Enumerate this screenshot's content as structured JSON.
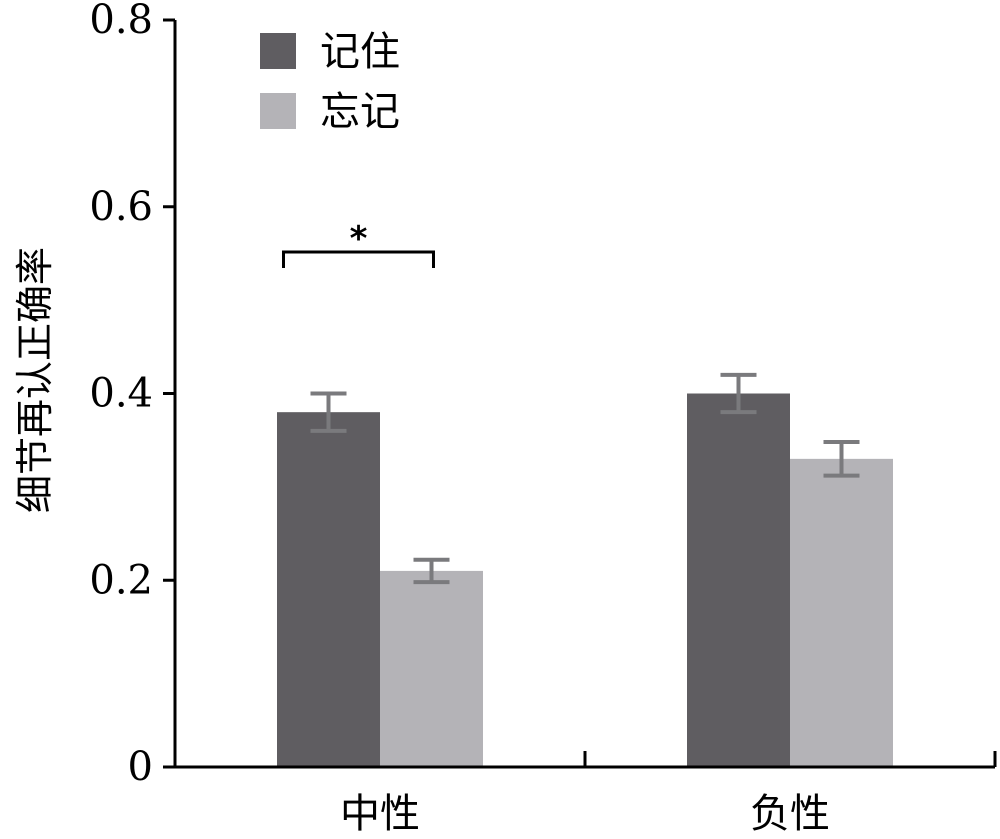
{
  "chart_data": {
    "type": "bar",
    "title": "",
    "xlabel": "",
    "ylabel": "细节再认正确率",
    "ylim": [
      0,
      0.8
    ],
    "yticks": [
      0,
      0.2,
      0.4,
      0.6,
      0.8
    ],
    "ytick_labels": [
      "0",
      "0.2",
      "0.4",
      "0.6",
      "0.8"
    ],
    "categories": [
      "中性",
      "负性"
    ],
    "grid": false,
    "legend_position": "top-left",
    "series": [
      {
        "name": "记住",
        "color": "#5f5d61",
        "values": [
          0.38,
          0.4
        ],
        "errors": [
          0.02,
          0.02
        ]
      },
      {
        "name": "忘记",
        "color": "#b4b3b7",
        "values": [
          0.21,
          0.33
        ],
        "errors": [
          0.012,
          0.018
        ]
      }
    ],
    "significance": [
      {
        "category": "中性",
        "label": "*"
      }
    ]
  }
}
